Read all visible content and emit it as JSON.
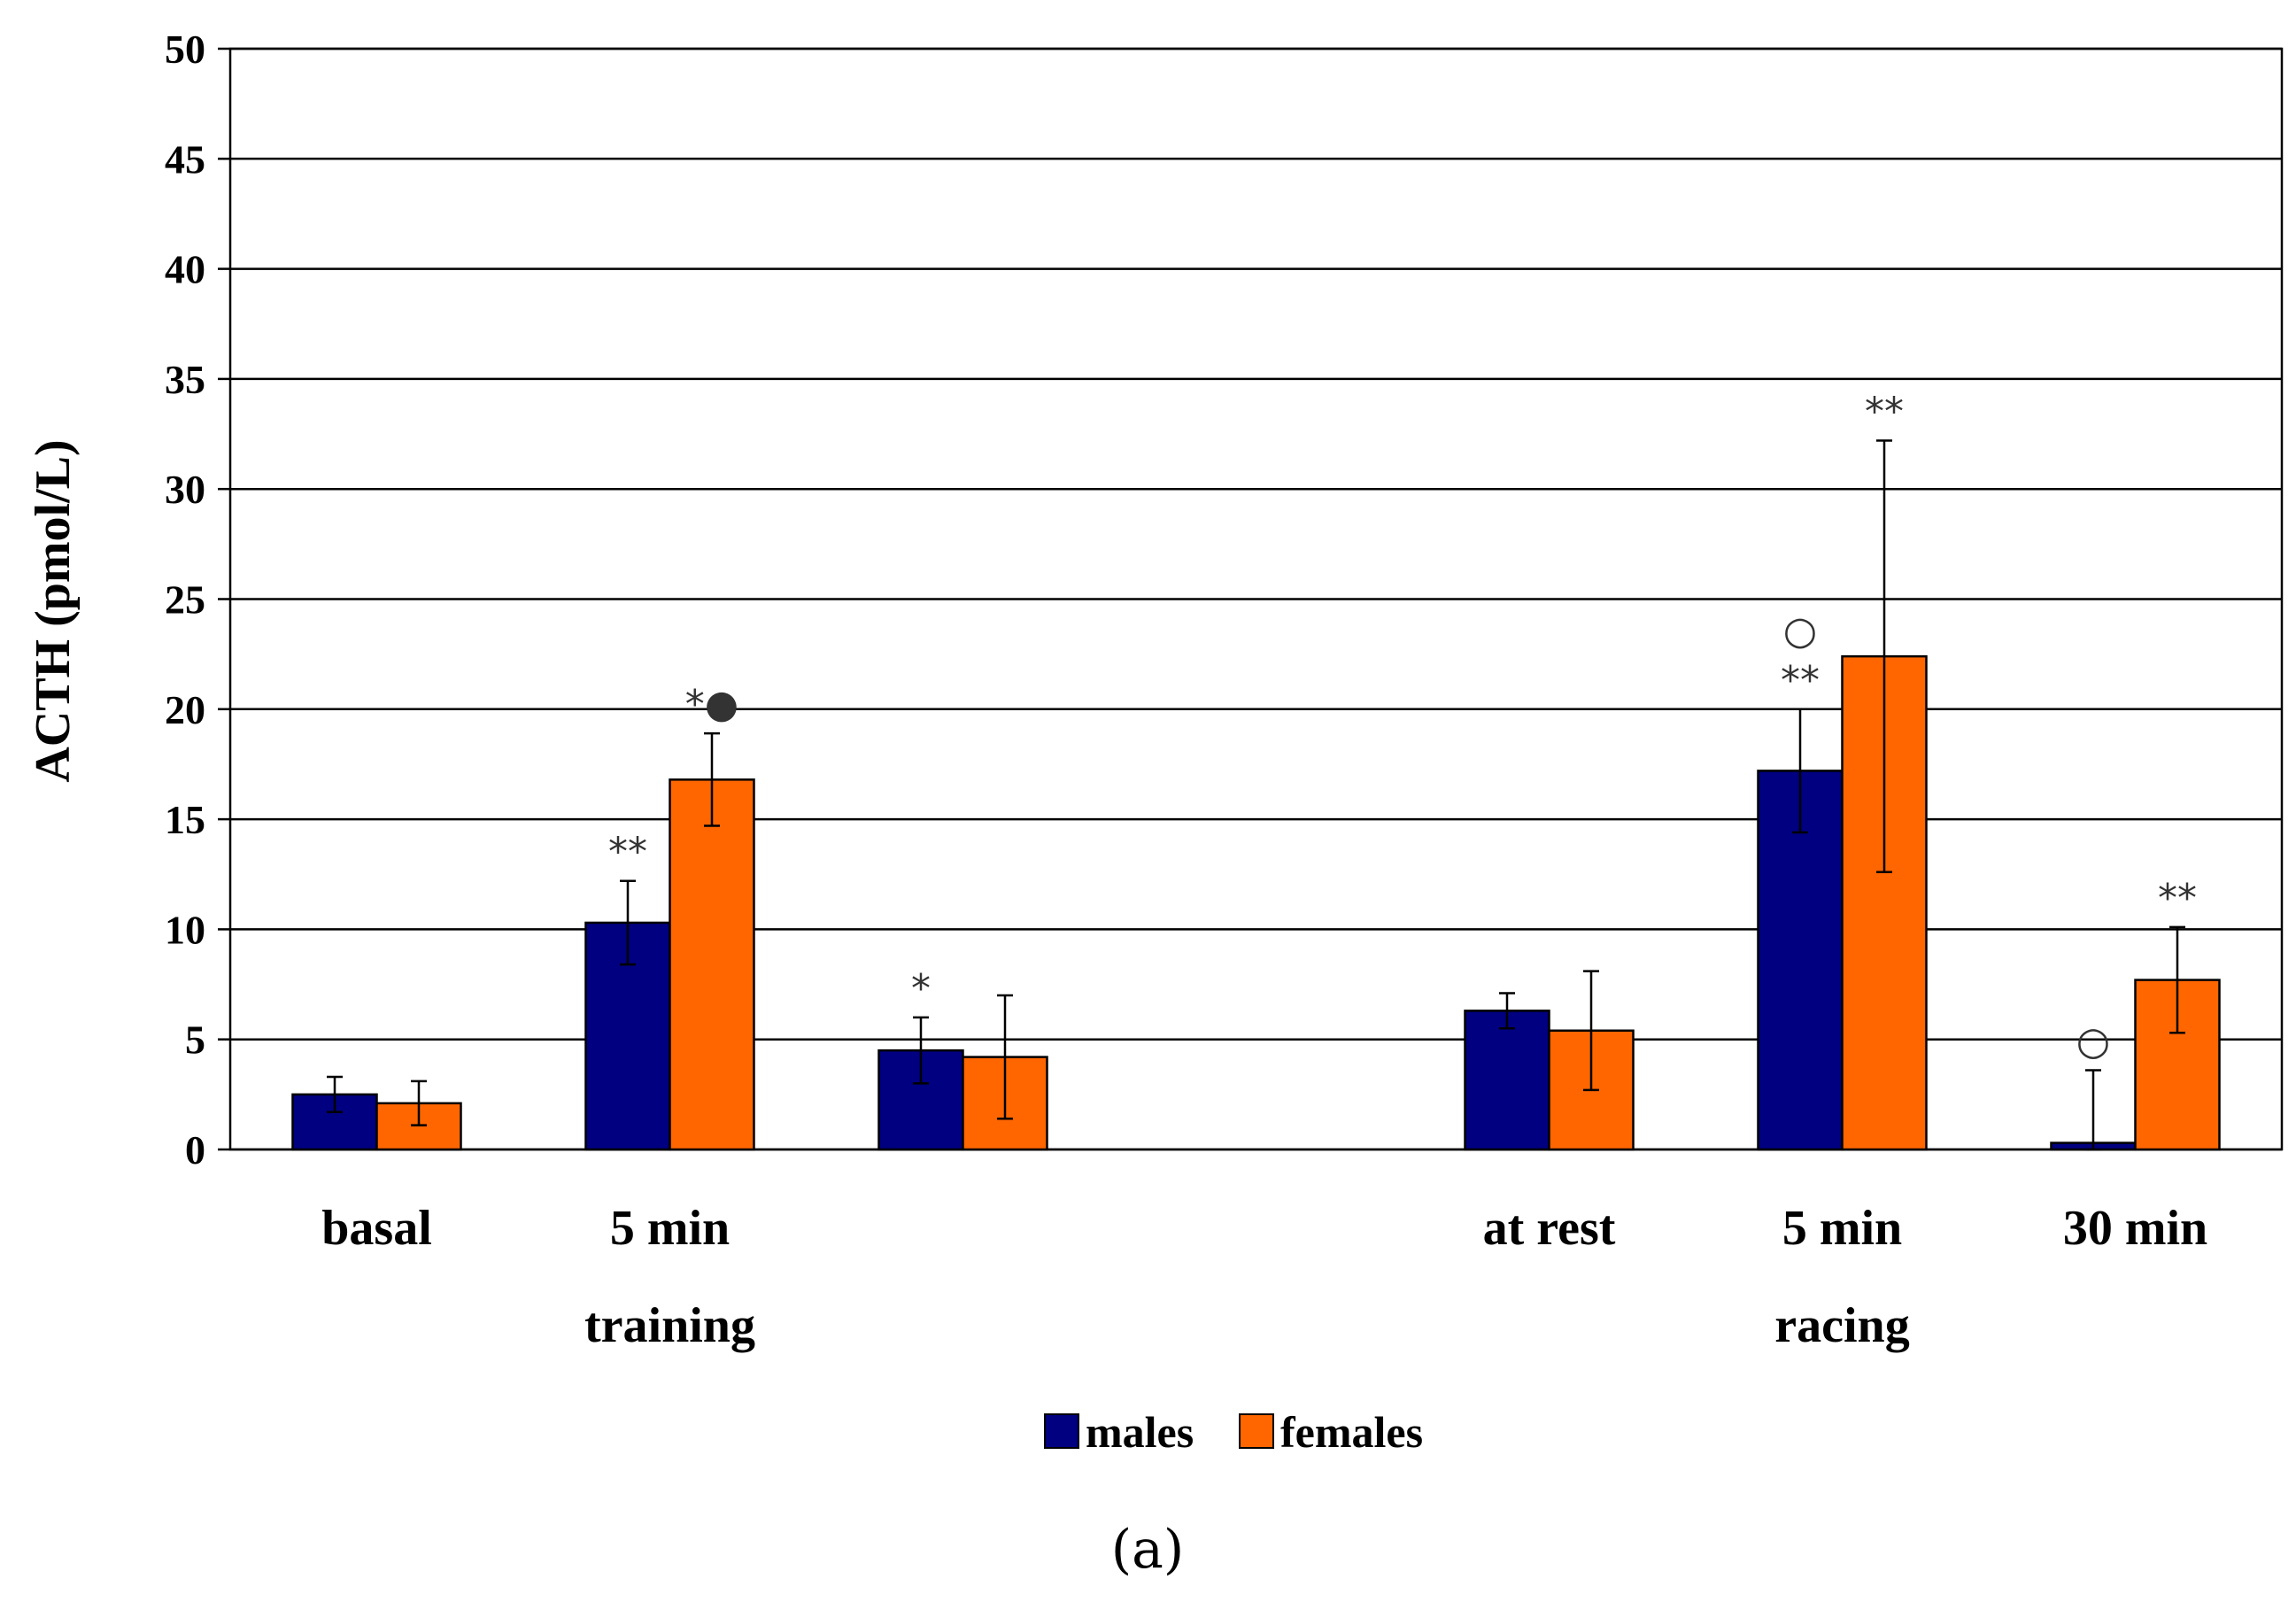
{
  "chart_data": {
    "type": "bar",
    "ylabel": "ACTH (pmol/L)",
    "ylim": [
      0,
      50
    ],
    "yticks": [
      0,
      5,
      10,
      15,
      20,
      25,
      30,
      35,
      40,
      45,
      50
    ],
    "grid": true,
    "legend_position": "bottom-center",
    "caption": "(a)",
    "categories": [
      {
        "line1": "basal",
        "line2": ""
      },
      {
        "line1": "5 min",
        "line2": "training"
      },
      {
        "line1": "",
        "line2": ""
      },
      {
        "line1": "",
        "line2": ""
      },
      {
        "line1": "at rest",
        "line2": ""
      },
      {
        "line1": "5 min",
        "line2": "racing"
      },
      {
        "line1": "30 min",
        "line2": ""
      }
    ],
    "series": [
      {
        "name": "males",
        "color": "#000080",
        "values": [
          2.5,
          10.3,
          4.5,
          null,
          6.3,
          17.2,
          0.3
        ],
        "errors": [
          0.8,
          1.9,
          1.5,
          null,
          0.8,
          2.8,
          3.3
        ]
      },
      {
        "name": "females",
        "color": "#FF6600",
        "values": [
          2.1,
          16.8,
          4.2,
          null,
          5.4,
          22.4,
          7.7
        ],
        "errors": [
          1.0,
          2.1,
          2.8,
          null,
          2.7,
          9.8,
          2.4
        ]
      }
    ],
    "annotations": [
      {
        "series": 0,
        "category": 1,
        "text": "**"
      },
      {
        "series": 1,
        "category": 1,
        "text": "*●"
      },
      {
        "series": 0,
        "category": 2,
        "text": "*"
      },
      {
        "series": 0,
        "category": 5,
        "text": "**"
      },
      {
        "series": 0,
        "category": 5,
        "text": "○",
        "row": 2
      },
      {
        "series": 1,
        "category": 5,
        "text": "**"
      },
      {
        "series": 0,
        "category": 6,
        "text": "○"
      },
      {
        "series": 1,
        "category": 6,
        "text": "**"
      }
    ]
  }
}
